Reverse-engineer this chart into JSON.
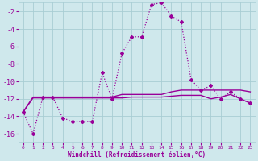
{
  "xlabel": "Windchill (Refroidissement éolien,°C)",
  "bg_color": "#cfe8ec",
  "grid_color": "#a8cdd4",
  "line_color": "#990099",
  "x_hours": [
    0,
    1,
    2,
    3,
    4,
    5,
    6,
    7,
    8,
    9,
    10,
    11,
    12,
    13,
    14,
    15,
    16,
    17,
    18,
    19,
    20,
    21,
    22,
    23
  ],
  "windchill": [
    -13.5,
    -16.0,
    -11.8,
    -11.8,
    -14.2,
    -14.6,
    -14.6,
    -14.6,
    -9.0,
    -12.0,
    -6.8,
    -4.9,
    -4.9,
    -1.2,
    -1.0,
    -2.5,
    -3.2,
    -9.8,
    -11.0,
    -10.5,
    -12.0,
    -11.2,
    -12.0,
    -12.5
  ],
  "temp_line1": [
    -13.5,
    -11.8,
    -11.8,
    -11.8,
    -11.8,
    -11.8,
    -11.8,
    -11.8,
    -11.8,
    -11.8,
    -11.5,
    -11.5,
    -11.5,
    -11.5,
    -11.5,
    -11.2,
    -11.0,
    -11.0,
    -11.0,
    -11.0,
    -11.0,
    -11.0,
    -11.0,
    -11.2
  ],
  "temp_line2": [
    -13.5,
    -11.9,
    -11.9,
    -11.9,
    -11.9,
    -11.9,
    -11.9,
    -11.9,
    -11.9,
    -11.9,
    -11.9,
    -11.8,
    -11.8,
    -11.8,
    -11.8,
    -11.7,
    -11.6,
    -11.6,
    -11.6,
    -12.0,
    -11.8,
    -11.5,
    -12.0,
    -12.5
  ],
  "ylim": [
    -17,
    -1
  ],
  "yticks": [
    -16,
    -14,
    -12,
    -10,
    -8,
    -6,
    -4,
    -2
  ],
  "xticks": [
    0,
    1,
    2,
    3,
    4,
    5,
    6,
    7,
    8,
    9,
    10,
    11,
    12,
    13,
    14,
    15,
    16,
    17,
    18,
    19,
    20,
    21,
    22,
    23
  ]
}
